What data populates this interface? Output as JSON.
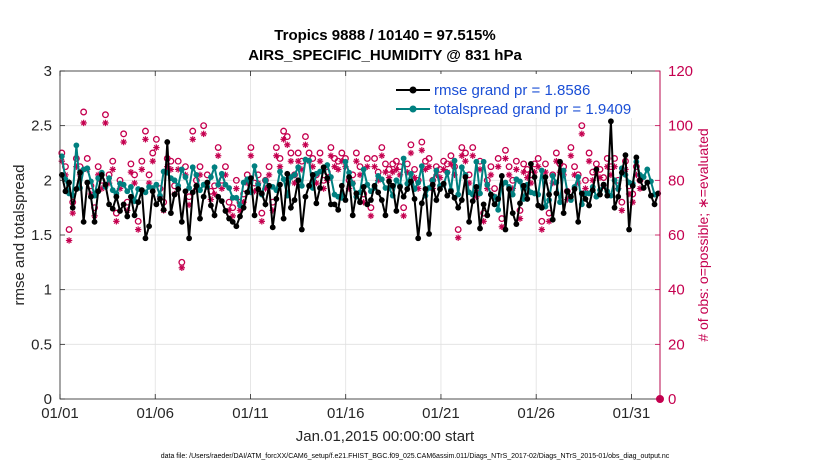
{
  "chart_data": {
    "type": "line",
    "title": "Tropics 9888 / 10140 = 97.515%",
    "subtitle": "AIRS_SPECIFIC_HUMIDITY @ 831 hPa",
    "xlabel": "Jan.01,2015 00:00:00 start",
    "ylabel": "rmse and totalspread",
    "ylabel_right": "# of obs: o=possible; ∗=evaluated",
    "xlim": [
      0,
      31.5
    ],
    "ylim": [
      0,
      3
    ],
    "ylim_right": [
      0,
      120
    ],
    "x_ticks": [
      0,
      5,
      10,
      15,
      20,
      25,
      30
    ],
    "x_tick_labels": [
      "01/01",
      "01/06",
      "01/11",
      "01/16",
      "01/21",
      "01/26",
      "01/31"
    ],
    "y_ticks": [
      "0",
      "0.5",
      "1",
      "1.5",
      "2",
      "2.5",
      "3"
    ],
    "y_ticks_right": [
      "0",
      "20",
      "40",
      "60",
      "80",
      "100",
      "120"
    ],
    "grid": true,
    "legend_position": "top-right",
    "footnote": "data file: /Users/raeder/DAI/ATM_forcXX/CAM6_setup/f.e21.FHIST_BGC.f09_025.CAM6assim.011/Diags_NTrS_2017-02/Diags_NTrS_2015-01/obs_diag_output.nc",
    "colors": {
      "rmse": "#000000",
      "totalspread": "#008080",
      "obs": "#c5004f",
      "legend_text": "#1b4fd6",
      "grid": "#e0e0e0"
    },
    "series": [
      {
        "name": "rmse grand pr = 1.8586",
        "axis": "left",
        "style": "line-dot",
        "values": [
          2.05,
          1.9,
          1.98,
          1.75,
          1.92,
          2.07,
          1.62,
          1.98,
          1.85,
          1.62,
          1.9,
          2.05,
          1.96,
          1.78,
          1.74,
          1.85,
          1.72,
          1.78,
          1.67,
          1.85,
          1.68,
          1.8,
          1.91,
          1.47,
          1.58,
          1.9,
          1.78,
          1.83,
          1.73,
          2.35,
          1.7,
          1.87,
          1.92,
          1.62,
          1.9,
          1.47,
          1.89,
          1.95,
          1.65,
          1.85,
          1.98,
          1.77,
          1.68,
          1.85,
          1.81,
          1.72,
          1.65,
          1.62,
          1.58,
          1.67,
          1.75,
          1.89,
          2.02,
          1.68,
          1.92,
          1.88,
          1.78,
          1.95,
          1.57,
          1.83,
          1.96,
          1.65,
          2.06,
          1.75,
          1.82,
          2.0,
          1.55,
          1.85,
          1.95,
          2.05,
          1.79,
          1.93,
          2.12,
          2.02,
          1.78,
          1.78,
          1.73,
          1.95,
          1.82,
          2.03,
          1.68,
          1.88,
          1.8,
          1.94,
          1.78,
          1.82,
          1.95,
          1.89,
          1.82,
          1.68,
          1.99,
          1.95,
          1.72,
          1.94,
          1.85,
          1.92,
          1.99,
          1.83,
          1.47,
          1.79,
          1.92,
          1.51,
          1.96,
          1.82,
          1.92,
          1.97,
          1.86,
          1.9,
          1.84,
          1.75,
          1.82,
          2.03,
          1.62,
          1.81,
          1.94,
          1.56,
          1.78,
          1.68,
          1.87,
          1.78,
          1.83,
          2.04,
          1.55,
          1.92,
          1.7,
          1.6,
          1.79,
          1.95,
          1.83,
          2.15,
          2.03,
          1.77,
          1.75,
          2.03,
          1.87,
          1.64,
          1.88,
          2.17,
          1.7,
          1.9,
          1.85,
          1.92,
          1.62,
          1.88,
          1.83,
          1.77,
          1.91,
          2.1,
          1.87,
          1.96,
          1.86,
          2.54,
          1.75,
          1.85,
          2.07,
          2.23,
          1.55,
          1.95,
          2.21,
          2.0,
          1.93,
          1.98,
          1.86,
          1.78,
          1.88
        ]
      },
      {
        "name": "totalspread grand pr = 1.9409",
        "axis": "left",
        "style": "line-dot",
        "values": [
          2.22,
          2.01,
          1.88,
          1.86,
          2.32,
          1.93,
          2.1,
          2.11,
          1.99,
          1.86,
          2.02,
          2.07,
          1.94,
          2.02,
          1.91,
          1.88,
          1.97,
          1.96,
          1.9,
          1.94,
          1.81,
          1.92,
          1.91,
          1.89,
          1.94,
          1.93,
          1.96,
          1.86,
          2.08,
          2.07,
          2.02,
          2.0,
          1.95,
          2.1,
          2.03,
          1.93,
          2.12,
          2.05,
          1.91,
          1.96,
          1.94,
          2.03,
          2.12,
          1.96,
          2.06,
          1.96,
          1.93,
          1.84,
          1.84,
          1.77,
          1.98,
          2.01,
          1.89,
          2.13,
          1.96,
          1.87,
          2.0,
          1.95,
          1.94,
          1.91,
          2.08,
          2.01,
          1.86,
          2.03,
          2.05,
          2.12,
          1.95,
          2.19,
          2.18,
          1.93,
          2.06,
          2.08,
          2.09,
          2.14,
          2.03,
          1.87,
          1.85,
          1.84,
          2.17,
          2.07,
          1.97,
          1.85,
          1.89,
          2.1,
          1.96,
          1.9,
          1.93,
          2.04,
          2.01,
          1.93,
          1.93,
          1.86,
          2.0,
          1.95,
          2.2,
          1.97,
          2.06,
          1.92,
          1.98,
          2.13,
          1.86,
          1.93,
          2.0,
          2.09,
          1.95,
          1.96,
          2.07,
          1.91,
          2.18,
          1.87,
          2.12,
          2.05,
          1.89,
          1.87,
          2.17,
          1.88,
          2.17,
          1.96,
          1.87,
          1.85,
          1.73,
          1.96,
          1.98,
          1.94,
          1.87,
          2.01,
          1.99,
          1.83,
          1.96,
          1.89,
          1.88,
          1.87,
          2.09,
          1.76,
          1.82,
          2.04,
          1.98,
          1.8,
          2.09,
          1.9,
          1.82,
          1.94,
          2.03,
          1.78,
          1.88,
          1.88,
          1.94,
          1.85,
          1.91,
          1.96,
          1.9,
          1.86,
          2.0,
          1.92,
          2.11,
          2.05,
          1.98,
          1.97,
          2.17,
          2.05,
          2.03,
          2.1,
          1.99,
          1.87
        ]
      },
      {
        "name": "possible obs (o)",
        "axis": "right",
        "style": "marker-o",
        "values": [
          90,
          85,
          62,
          72,
          88,
          85,
          105,
          88,
          78,
          70,
          85,
          80,
          104,
          82,
          87,
          68,
          80,
          97,
          72,
          86,
          82,
          65,
          87,
          98,
          82,
          90,
          95,
          77,
          72,
          88,
          87,
          78,
          87,
          50,
          85,
          74,
          98,
          80,
          85,
          100,
          82,
          76,
          78,
          92,
          80,
          85,
          72,
          70,
          80,
          72,
          75,
          82,
          92,
          79,
          82,
          68,
          80,
          85,
          72,
          92,
          88,
          98,
          96,
          90,
          82,
          90,
          87,
          96,
          90,
          88,
          82,
          90,
          80,
          83,
          92,
          88,
          87,
          90,
          88,
          80,
          82,
          90,
          85,
          75,
          88,
          70,
          88,
          83,
          92,
          86,
          84,
          86,
          87,
          85,
          70,
          86,
          93,
          84,
          80,
          94,
          87,
          88,
          80,
          85,
          84,
          87,
          86,
          89,
          85,
          62,
          92,
          90,
          82,
          92,
          77,
          87,
          68,
          80,
          85,
          77,
          88,
          66,
          91,
          85,
          80,
          87,
          69,
          86,
          84,
          82,
          86,
          88,
          65,
          86,
          68,
          82,
          90,
          86,
          85,
          76,
          92,
          85,
          82,
          100,
          80,
          90,
          83,
          86,
          84,
          81,
          88,
          85,
          88,
          80,
          72,
          87,
          78,
          75,
          85,
          80
        ]
      },
      {
        "name": "evaluated obs (∗)",
        "axis": "right",
        "style": "marker-star",
        "values": [
          87,
          82,
          58,
          68,
          85,
          82,
          101,
          84,
          75,
          67,
          82,
          77,
          101,
          79,
          84,
          65,
          77,
          94,
          69,
          83,
          79,
          62,
          84,
          95,
          79,
          87,
          92,
          74,
          69,
          85,
          84,
          75,
          84,
          48,
          82,
          71,
          95,
          77,
          82,
          97,
          79,
          73,
          75,
          89,
          77,
          82,
          69,
          67,
          77,
          69,
          72,
          79,
          89,
          76,
          79,
          65,
          77,
          82,
          69,
          89,
          85,
          95,
          93,
          87,
          79,
          87,
          84,
          93,
          87,
          85,
          79,
          87,
          77,
          80,
          89,
          85,
          84,
          87,
          85,
          77,
          79,
          87,
          82,
          72,
          85,
          67,
          85,
          80,
          89,
          83,
          81,
          83,
          84,
          82,
          67,
          83,
          90,
          81,
          77,
          91,
          84,
          85,
          77,
          82,
          81,
          84,
          83,
          86,
          82,
          59,
          89,
          87,
          79,
          89,
          74,
          84,
          65,
          77,
          82,
          74,
          85,
          63,
          88,
          82,
          77,
          84,
          66,
          83,
          81,
          79,
          83,
          85,
          62,
          83,
          65,
          79,
          87,
          83,
          82,
          73,
          89,
          82,
          79,
          97,
          77,
          87,
          80,
          83,
          81,
          78,
          85,
          82,
          85,
          77,
          69,
          84,
          75,
          72,
          82,
          77
        ]
      }
    ]
  }
}
